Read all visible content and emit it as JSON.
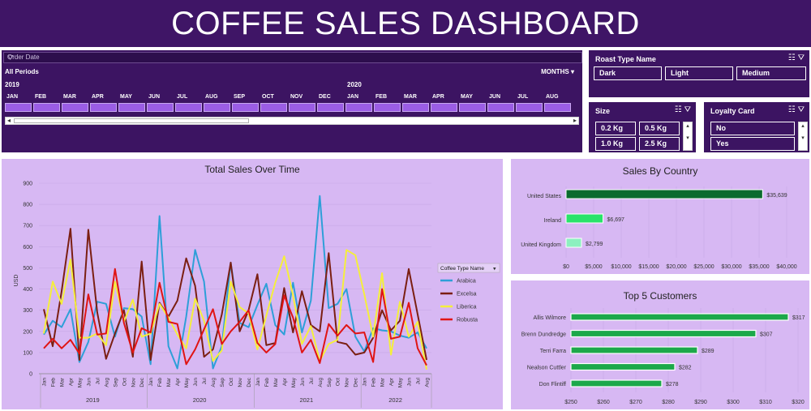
{
  "header": {
    "title": "COFFEE SALES DASHBOARD"
  },
  "timeline": {
    "title": "Order Date",
    "range_label": "All Periods",
    "level": "MONTHS",
    "years": [
      "2019",
      "2020"
    ],
    "months": [
      "JAN",
      "FEB",
      "MAR",
      "APR",
      "MAY",
      "JUN",
      "JUL",
      "AUG",
      "SEP",
      "OCT",
      "NOV",
      "DEC",
      "JAN",
      "FEB",
      "MAR",
      "APR",
      "MAY",
      "JUN",
      "JUL",
      "AUG"
    ]
  },
  "roast_slicer": {
    "title": "Roast Type Name",
    "items": [
      "Dark",
      "Light",
      "Medium"
    ]
  },
  "size_slicer": {
    "title": "Size",
    "items": [
      "0.2 Kg",
      "0.5 Kg",
      "1.0 Kg",
      "2.5 Kg"
    ]
  },
  "loyalty_slicer": {
    "title": "Loyalty Card",
    "items": [
      "No",
      "Yes"
    ]
  },
  "colors": {
    "arabica": "#2e9fd8",
    "excelsa": "#7b1f12",
    "liberica": "#f5ef3b",
    "robusta": "#e01414",
    "country_bar_1": "#0b6b2e",
    "country_bar_2": "#29e36a",
    "country_bar_3": "#8df0c0",
    "customer_bar": "#1ca84a"
  },
  "chart_data": [
    {
      "type": "line",
      "title": "Total Sales Over Time",
      "ylabel": "USD",
      "ylim": [
        0,
        900
      ],
      "yticks": [
        "0",
        "100",
        "200",
        "300",
        "400",
        "500",
        "600",
        "700",
        "800",
        "900"
      ],
      "x": [
        "Jan",
        "Feb",
        "Mar",
        "Apr",
        "May",
        "Jun",
        "Jul",
        "Aug",
        "Sep",
        "Oct",
        "Nov",
        "Dec",
        "Jan",
        "Feb",
        "Mar",
        "Apr",
        "May",
        "Jun",
        "Jul",
        "Aug",
        "Sep",
        "Oct",
        "Nov",
        "Dec",
        "Jan",
        "Feb",
        "Mar",
        "Apr",
        "May",
        "Jun",
        "Jul",
        "Aug",
        "Sep",
        "Oct",
        "Nov",
        "Dec",
        "Jan",
        "Feb",
        "Mar",
        "Apr",
        "May",
        "Jun",
        "Jul",
        "Aug"
      ],
      "year_groups": [
        {
          "label": "2019",
          "start": 0,
          "end": 11
        },
        {
          "label": "2020",
          "start": 12,
          "end": 23
        },
        {
          "label": "2021",
          "start": 24,
          "end": 35
        },
        {
          "label": "2022",
          "start": 36,
          "end": 43
        }
      ],
      "legend_title": "Coffee Type Name",
      "series": [
        {
          "name": "Arabica",
          "color": "#2e9fd8",
          "values": [
            185,
            250,
            220,
            305,
            55,
            150,
            340,
            330,
            175,
            310,
            305,
            270,
            45,
            745,
            130,
            25,
            270,
            585,
            435,
            25,
            130,
            525,
            240,
            220,
            325,
            425,
            230,
            185,
            430,
            195,
            345,
            840,
            310,
            330,
            400,
            175,
            105,
            215,
            205,
            200,
            180,
            170,
            195,
            120
          ]
        },
        {
          "name": "Excelsa",
          "color": "#7b1f12",
          "values": [
            305,
            130,
            390,
            685,
            65,
            680,
            290,
            70,
            190,
            300,
            80,
            530,
            65,
            335,
            270,
            345,
            545,
            415,
            80,
            115,
            280,
            525,
            200,
            300,
            470,
            135,
            145,
            405,
            195,
            390,
            230,
            200,
            570,
            150,
            140,
            90,
            100,
            170,
            300,
            205,
            250,
            495,
            280,
            65
          ]
        },
        {
          "name": "Liberica",
          "color": "#f5ef3b",
          "values": [
            190,
            435,
            330,
            540,
            170,
            170,
            190,
            135,
            435,
            245,
            350,
            175,
            190,
            330,
            265,
            185,
            120,
            355,
            250,
            60,
            110,
            435,
            315,
            285,
            115,
            275,
            430,
            555,
            370,
            140,
            225,
            60,
            140,
            160,
            585,
            560,
            375,
            175,
            475,
            90,
            340,
            175,
            245,
            20
          ]
        },
        {
          "name": "Robusta",
          "color": "#e01414",
          "values": [
            120,
            165,
            120,
            160,
            95,
            375,
            185,
            190,
            495,
            240,
            100,
            215,
            195,
            430,
            245,
            235,
            45,
            115,
            210,
            305,
            140,
            200,
            245,
            300,
            145,
            100,
            140,
            370,
            265,
            100,
            160,
            50,
            235,
            180,
            230,
            190,
            195,
            55,
            400,
            165,
            175,
            335,
            120,
            40
          ]
        }
      ]
    },
    {
      "type": "bar",
      "title": "Sales By Country",
      "categories": [
        "United States",
        "Ireland",
        "United Kingdom"
      ],
      "values": [
        35639,
        6697,
        2799
      ],
      "labels": [
        "$35,639",
        "$6,697",
        "$2,799"
      ],
      "xlim": [
        0,
        40000
      ],
      "xticks": [
        "$0",
        "$5,000",
        "$10,000",
        "$15,000",
        "$20,000",
        "$25,000",
        "$30,000",
        "$35,000",
        "$40,000"
      ]
    },
    {
      "type": "bar",
      "title": "Top 5 Customers",
      "categories": [
        "Allis Wilmore",
        "Brenn Dundredge",
        "Terri Farra",
        "Nealson Cuttler",
        "Don Flintiff"
      ],
      "values": [
        317,
        307,
        289,
        282,
        278
      ],
      "labels": [
        "$317",
        "$307",
        "$289",
        "$282",
        "$278"
      ],
      "xlim": [
        250,
        320
      ],
      "xticks": [
        "$250",
        "$260",
        "$270",
        "$280",
        "$290",
        "$300",
        "$310",
        "$320"
      ]
    }
  ]
}
